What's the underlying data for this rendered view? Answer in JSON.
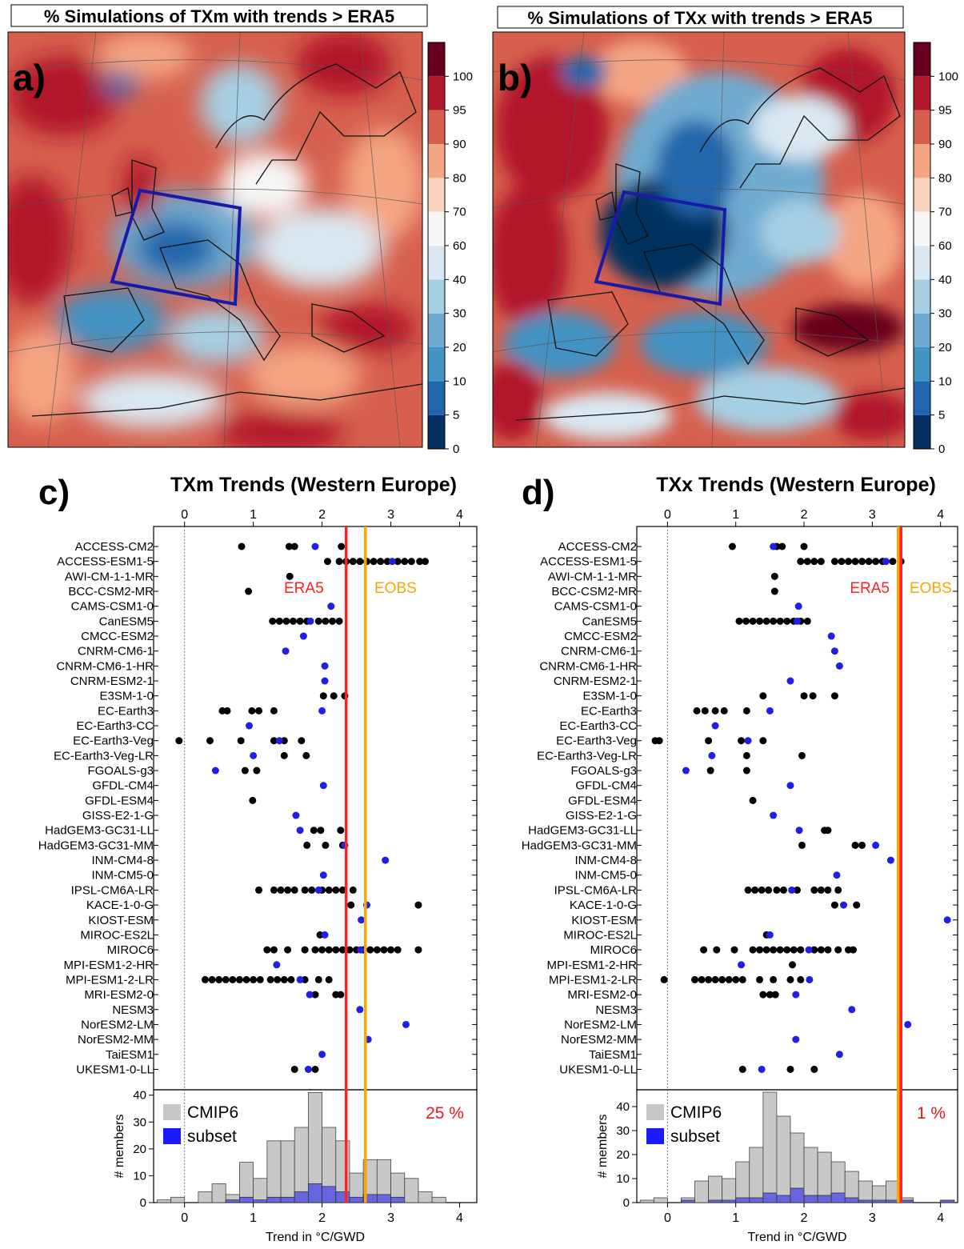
{
  "colors": {
    "blue_dot": "#1f1fe6",
    "black_dot": "#000000",
    "era5": "#ff2020",
    "eobs": "#ffa500",
    "cmip6_bar": "#c8c8c8",
    "subset_bar": "#6666e0",
    "box": "#1a1aa8"
  },
  "maps": [
    {
      "panel_letter": "a)",
      "title": "% Simulations of TXm with trends > ERA5",
      "colorbar": {
        "levels": [
          0,
          5,
          10,
          20,
          30,
          40,
          60,
          70,
          80,
          90,
          95,
          100
        ],
        "tick_labels": [
          "0",
          "5",
          "10",
          "20",
          "30",
          "40",
          "60",
          "70",
          "80",
          "90",
          "95",
          "100"
        ],
        "colors": [
          "#053061",
          "#2166ac",
          "#4393c3",
          "#6fabd0",
          "#a6cfe3",
          "#d9e8f2",
          "#f7f7f7",
          "#fbd4c0",
          "#f4a582",
          "#d6604d",
          "#b2182b",
          "#67001f"
        ]
      }
    },
    {
      "panel_letter": "b)",
      "title": "% Simulations of TXx with trends > ERA5",
      "colorbar": {
        "levels": [
          0,
          5,
          10,
          20,
          30,
          40,
          60,
          70,
          80,
          90,
          95,
          100
        ],
        "tick_labels": [
          "0",
          "5",
          "10",
          "20",
          "30",
          "40",
          "60",
          "70",
          "80",
          "90",
          "95",
          "100"
        ],
        "colors": [
          "#053061",
          "#2166ac",
          "#4393c3",
          "#6fabd0",
          "#a6cfe3",
          "#d9e8f2",
          "#f7f7f7",
          "#fbd4c0",
          "#f4a582",
          "#d6604d",
          "#b2182b",
          "#67001f"
        ]
      }
    }
  ],
  "chart_data": [
    {
      "type": "scatter",
      "panel_letter": "c)",
      "title": "TXm Trends (Western Europe)",
      "xlabel": "Trend in °C/GWD",
      "xlim": [
        -0.45,
        4.25
      ],
      "xticks": [
        0,
        1,
        2,
        3,
        4
      ],
      "era5": {
        "label": "ERA5",
        "x": 2.35
      },
      "eobs": {
        "label": "EOBS",
        "x": 2.63
      },
      "models": [
        {
          "name": "ACCESS-CM2",
          "black": [
            0.83,
            1.52,
            1.6,
            2.28
          ],
          "blue": [
            1.9
          ]
        },
        {
          "name": "ACCESS-ESM1-5",
          "black": [
            2.08,
            2.25,
            2.35,
            2.45,
            2.55,
            2.65,
            2.75,
            2.85,
            2.95,
            3.1,
            3.2,
            3.3,
            3.42,
            3.5
          ],
          "blue": [
            3.02
          ]
        },
        {
          "name": "AWI-CM-1-1-MR",
          "black": [
            1.53
          ],
          "blue": []
        },
        {
          "name": "BCC-CSM2-MR",
          "black": [
            0.93
          ],
          "blue": []
        },
        {
          "name": "CAMS-CSM1-0",
          "black": [],
          "blue": [
            2.13
          ]
        },
        {
          "name": "CanESM5",
          "black": [
            1.28,
            1.38,
            1.48,
            1.58,
            1.68,
            1.78,
            1.95,
            2.05,
            2.15,
            2.25
          ],
          "blue": [
            1.83
          ]
        },
        {
          "name": "CMCC-ESM2",
          "black": [],
          "blue": [
            1.73
          ]
        },
        {
          "name": "CNRM-CM6-1",
          "black": [],
          "blue": [
            1.47
          ]
        },
        {
          "name": "CNRM-CM6-1-HR",
          "black": [],
          "blue": [
            2.04
          ]
        },
        {
          "name": "CNRM-ESM2-1",
          "black": [],
          "blue": [
            2.04
          ]
        },
        {
          "name": "E3SM-1-0",
          "black": [
            2.02,
            2.17,
            2.33
          ],
          "blue": []
        },
        {
          "name": "EC-Earth3",
          "black": [
            0.55,
            0.62,
            0.98,
            1.08,
            1.3
          ],
          "blue": [
            2.0
          ]
        },
        {
          "name": "EC-Earth3-CC",
          "black": [],
          "blue": [
            0.94
          ]
        },
        {
          "name": "EC-Earth3-Veg",
          "black": [
            -0.08,
            0.37,
            0.82,
            1.3,
            1.45,
            1.7
          ],
          "blue": [
            1.38
          ]
        },
        {
          "name": "EC-Earth3-Veg-LR",
          "black": [
            1.45,
            1.77
          ],
          "blue": [
            1.0
          ]
        },
        {
          "name": "FGOALS-g3",
          "black": [
            0.88,
            1.05
          ],
          "blue": [
            0.45
          ]
        },
        {
          "name": "GFDL-CM4",
          "black": [],
          "blue": [
            2.02
          ]
        },
        {
          "name": "GFDL-ESM4",
          "black": [
            0.99
          ],
          "blue": []
        },
        {
          "name": "GISS-E2-1-G",
          "black": [],
          "blue": [
            1.62
          ]
        },
        {
          "name": "HadGEM3-GC31-LL",
          "black": [
            1.88,
            1.98,
            2.27
          ],
          "blue": [
            1.68
          ]
        },
        {
          "name": "HadGEM3-GC31-MM",
          "black": [
            1.78,
            2.05,
            2.3
          ],
          "blue": [
            2.33
          ]
        },
        {
          "name": "INM-CM4-8",
          "black": [],
          "blue": [
            2.92
          ]
        },
        {
          "name": "INM-CM5-0",
          "black": [],
          "blue": [
            2.02
          ]
        },
        {
          "name": "IPSL-CM6A-LR",
          "black": [
            1.08,
            1.3,
            1.4,
            1.5,
            1.6,
            1.75,
            1.85,
            2.0,
            2.1,
            2.2,
            2.3,
            2.45
          ],
          "blue": [
            1.95
          ]
        },
        {
          "name": "KACE-1-0-G",
          "black": [
            2.42,
            3.4
          ],
          "blue": [
            2.65
          ]
        },
        {
          "name": "KIOST-ESM",
          "black": [],
          "blue": [
            2.57
          ]
        },
        {
          "name": "MIROC-ES2L",
          "black": [
            1.97
          ],
          "blue": [
            2.04
          ]
        },
        {
          "name": "MIROC6",
          "black": [
            1.2,
            1.3,
            1.5,
            1.75,
            1.9,
            2.0,
            2.1,
            2.2,
            2.3,
            2.4,
            2.5,
            2.6,
            2.7,
            2.8,
            2.9,
            3.0,
            3.1,
            3.4
          ],
          "blue": [
            2.56
          ]
        },
        {
          "name": "MPI-ESM1-2-HR",
          "black": [],
          "blue": [
            1.34
          ]
        },
        {
          "name": "MPI-ESM1-2-LR",
          "black": [
            0.3,
            0.4,
            0.5,
            0.6,
            0.7,
            0.8,
            0.9,
            1.0,
            1.1,
            1.25,
            1.35,
            1.45,
            1.55,
            1.75,
            1.95,
            2.1
          ],
          "blue": [
            1.68
          ]
        },
        {
          "name": "MRI-ESM2-0",
          "black": [
            1.9,
            2.2,
            2.27
          ],
          "blue": [
            1.82
          ]
        },
        {
          "name": "NESM3",
          "black": [],
          "blue": [
            2.55
          ]
        },
        {
          "name": "NorESM2-LM",
          "black": [],
          "blue": [
            3.22
          ]
        },
        {
          "name": "NorESM2-MM",
          "black": [],
          "blue": [
            2.67
          ]
        },
        {
          "name": "TaiESM1",
          "black": [],
          "blue": [
            2.0
          ]
        },
        {
          "name": "UKESM1-0-LL",
          "black": [
            1.6,
            1.9
          ],
          "blue": [
            1.8
          ]
        }
      ],
      "histogram": {
        "ylabel": "# members",
        "ylim": [
          0,
          42
        ],
        "yticks": [
          0,
          10,
          20,
          30,
          40
        ],
        "bin_width": 0.2,
        "bin_starts": [
          -0.4,
          -0.2,
          0.0,
          0.2,
          0.4,
          0.6,
          0.8,
          1.0,
          1.2,
          1.4,
          1.6,
          1.8,
          2.0,
          2.2,
          2.4,
          2.6,
          2.8,
          3.0,
          3.2,
          3.4,
          3.6,
          3.8
        ],
        "cmip6": [
          1,
          2,
          0,
          4,
          7,
          3,
          15,
          9,
          23,
          23,
          28,
          41,
          28,
          23,
          11,
          16,
          16,
          11,
          9,
          4,
          2,
          0
        ],
        "subset": [
          0,
          0,
          0,
          0,
          0,
          1,
          2,
          1,
          2,
          2,
          4,
          7,
          6,
          4,
          2,
          3,
          3,
          2,
          0,
          0,
          0,
          0
        ],
        "legend": [
          "CMIP6",
          "subset"
        ],
        "percent_label": "25 %"
      }
    },
    {
      "type": "scatter",
      "panel_letter": "d)",
      "title": "TXx Trends (Western Europe)",
      "xlabel": "Trend in °C/GWD",
      "xlim": [
        -0.45,
        4.25
      ],
      "xticks": [
        0,
        1,
        2,
        3,
        4
      ],
      "era5": {
        "label": "ERA5",
        "x": 3.42
      },
      "eobs": {
        "label": "EOBS",
        "x": 3.38
      },
      "models": [
        {
          "name": "ACCESS-CM2",
          "black": [
            0.95,
            1.6,
            1.68,
            2.0
          ],
          "blue": [
            1.55
          ]
        },
        {
          "name": "ACCESS-ESM1-5",
          "black": [
            1.95,
            2.05,
            2.15,
            2.25,
            2.45,
            2.55,
            2.65,
            2.75,
            2.85,
            2.95,
            3.05,
            3.15,
            3.3,
            3.42
          ],
          "blue": [
            3.2
          ]
        },
        {
          "name": "AWI-CM-1-1-MR",
          "black": [
            1.57
          ],
          "blue": []
        },
        {
          "name": "BCC-CSM2-MR",
          "black": [
            1.57
          ],
          "blue": []
        },
        {
          "name": "CAMS-CSM1-0",
          "black": [],
          "blue": [
            1.92
          ]
        },
        {
          "name": "CanESM5",
          "black": [
            1.05,
            1.15,
            1.25,
            1.35,
            1.45,
            1.55,
            1.65,
            1.75,
            1.85,
            1.95,
            2.05
          ],
          "blue": [
            1.9
          ]
        },
        {
          "name": "CMCC-ESM2",
          "black": [],
          "blue": [
            2.4
          ]
        },
        {
          "name": "CNRM-CM6-1",
          "black": [],
          "blue": [
            2.45
          ]
        },
        {
          "name": "CNRM-CM6-1-HR",
          "black": [],
          "blue": [
            2.52
          ]
        },
        {
          "name": "CNRM-ESM2-1",
          "black": [],
          "blue": [
            1.8
          ]
        },
        {
          "name": "E3SM-1-0",
          "black": [
            1.4,
            2.0,
            2.13,
            2.45
          ],
          "blue": []
        },
        {
          "name": "EC-Earth3",
          "black": [
            0.43,
            0.55,
            0.7,
            0.83,
            1.16
          ],
          "blue": [
            1.5
          ]
        },
        {
          "name": "EC-Earth3-CC",
          "black": [],
          "blue": [
            0.7
          ]
        },
        {
          "name": "EC-Earth3-Veg",
          "black": [
            -0.18,
            -0.12,
            0.6,
            1.08,
            1.4
          ],
          "blue": [
            1.18
          ]
        },
        {
          "name": "EC-Earth3-Veg-LR",
          "black": [
            1.16,
            1.97
          ],
          "blue": [
            0.65
          ]
        },
        {
          "name": "FGOALS-g3",
          "black": [
            0.63,
            1.16
          ],
          "blue": [
            0.27
          ]
        },
        {
          "name": "GFDL-CM4",
          "black": [],
          "blue": [
            1.8
          ]
        },
        {
          "name": "GFDL-ESM4",
          "black": [
            1.25
          ],
          "blue": []
        },
        {
          "name": "GISS-E2-1-G",
          "black": [],
          "blue": [
            1.55
          ]
        },
        {
          "name": "HadGEM3-GC31-LL",
          "black": [
            2.3,
            2.35
          ],
          "blue": [
            1.93
          ]
        },
        {
          "name": "HadGEM3-GC31-MM",
          "black": [
            1.97,
            2.75,
            2.85
          ],
          "blue": [
            3.05
          ]
        },
        {
          "name": "INM-CM4-8",
          "black": [],
          "blue": [
            3.27
          ]
        },
        {
          "name": "INM-CM5-0",
          "black": [],
          "blue": [
            2.48
          ]
        },
        {
          "name": "IPSL-CM6A-LR",
          "black": [
            1.18,
            1.28,
            1.38,
            1.48,
            1.6,
            1.7,
            1.9,
            2.15,
            2.25,
            2.35,
            2.5
          ],
          "blue": [
            1.82
          ]
        },
        {
          "name": "KACE-1-0-G",
          "black": [
            2.45,
            2.77
          ],
          "blue": [
            2.58
          ]
        },
        {
          "name": "KIOST-ESM",
          "black": [],
          "blue": [
            4.1
          ]
        },
        {
          "name": "MIROC-ES2L",
          "black": [
            1.45
          ],
          "blue": [
            1.5
          ]
        },
        {
          "name": "MIROC6",
          "black": [
            0.53,
            0.72,
            0.98,
            1.25,
            1.35,
            1.45,
            1.55,
            1.65,
            1.75,
            1.85,
            1.95,
            2.15,
            2.25,
            2.35,
            2.5,
            2.65,
            2.72
          ],
          "blue": [
            2.07
          ]
        },
        {
          "name": "MPI-ESM1-2-HR",
          "black": [
            1.83
          ],
          "blue": [
            1.08
          ]
        },
        {
          "name": "MPI-ESM1-2-LR",
          "black": [
            -0.05,
            0.4,
            0.5,
            0.6,
            0.7,
            0.8,
            0.9,
            1.0,
            1.1,
            1.35,
            1.55,
            1.8,
            1.95
          ],
          "blue": [
            2.08
          ]
        },
        {
          "name": "MRI-ESM2-0",
          "black": [
            1.4,
            1.5,
            1.58
          ],
          "blue": [
            1.88
          ]
        },
        {
          "name": "NESM3",
          "black": [],
          "blue": [
            2.7
          ]
        },
        {
          "name": "NorESM2-LM",
          "black": [],
          "blue": [
            3.52
          ]
        },
        {
          "name": "NorESM2-MM",
          "black": [],
          "blue": [
            1.88
          ]
        },
        {
          "name": "TaiESM1",
          "black": [],
          "blue": [
            2.52
          ]
        },
        {
          "name": "UKESM1-0-LL",
          "black": [
            1.1,
            1.8,
            2.15
          ],
          "blue": [
            1.38
          ]
        }
      ],
      "histogram": {
        "ylabel": "# members",
        "ylim": [
          0,
          47
        ],
        "yticks": [
          0,
          10,
          20,
          30,
          40
        ],
        "bin_width": 0.2,
        "bin_starts": [
          -0.4,
          -0.2,
          0.0,
          0.2,
          0.4,
          0.6,
          0.8,
          1.0,
          1.2,
          1.4,
          1.6,
          1.8,
          2.0,
          2.2,
          2.4,
          2.6,
          2.8,
          3.0,
          3.2,
          3.4,
          3.6,
          3.8,
          4.0
        ],
        "cmip6": [
          1,
          2,
          0,
          2,
          9,
          11,
          10,
          17,
          23,
          46,
          36,
          29,
          23,
          21,
          17,
          13,
          9,
          7,
          9,
          2,
          0,
          0,
          1
        ],
        "subset": [
          0,
          0,
          0,
          1,
          0,
          1,
          1,
          2,
          2,
          4,
          3,
          6,
          3,
          3,
          4,
          2,
          1,
          1,
          1,
          1,
          0,
          0,
          1
        ],
        "legend": [
          "CMIP6",
          "subset"
        ],
        "percent_label": "1 %"
      }
    }
  ]
}
